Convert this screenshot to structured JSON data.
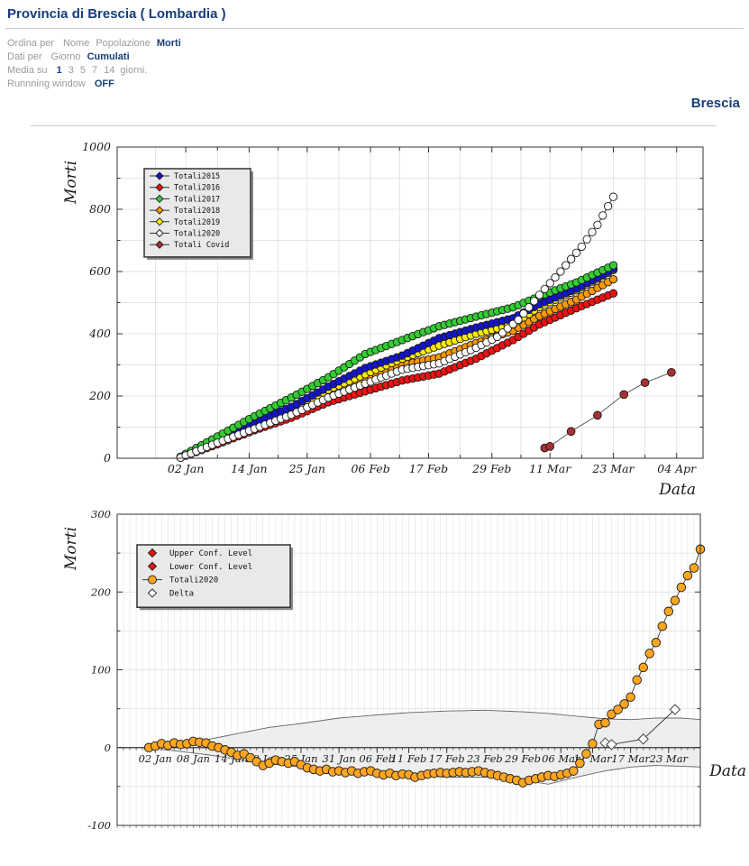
{
  "header": {
    "title": "Provincia di Brescia ( Lombardia )",
    "region_label": "Brescia",
    "controls": [
      {
        "label": "Ordina per",
        "options": [
          "Nome",
          "Popolazione",
          "Morti"
        ],
        "selected": "Morti",
        "suffix": ""
      },
      {
        "label": "Dati per",
        "options": [
          "Giorno",
          "Cumulati"
        ],
        "selected": "Cumulati",
        "suffix": ""
      },
      {
        "label": "Media su",
        "options": [
          "1",
          "3",
          "5",
          "7",
          "14"
        ],
        "selected": "1",
        "suffix": "giorni."
      },
      {
        "label": "Runnning window",
        "options": [
          "OFF"
        ],
        "selected": "OFF",
        "suffix": ""
      }
    ]
  },
  "colors": {
    "accent_navy": "#173D7D",
    "muted_text": "#9A9A9A",
    "rule": "#C8CDD3",
    "axis": "#333333",
    "grid": "#DDDDDD",
    "legend_bg": "#E9E9E9",
    "legend_shadow": "#888888",
    "band_fill": "#EEEEEE",
    "band_edge": "#666666"
  },
  "chart_data": [
    {
      "id": "top",
      "type": "line",
      "title": "",
      "xlabel": "Data",
      "ylabel": "Morti",
      "x_unit": "day of year 2020 (1 = 01 Jan)",
      "xlim": [
        -11,
        100
      ],
      "ylim": [
        0,
        1000
      ],
      "yticks": [
        0,
        200,
        400,
        600,
        800,
        1000
      ],
      "ytick_minor_step": 100,
      "grid": true,
      "legend_position": "upper left inset",
      "xticks": [
        {
          "day": 2,
          "label": "02 Jan"
        },
        {
          "day": 14,
          "label": "14 Jan"
        },
        {
          "day": 25,
          "label": "25 Jan"
        },
        {
          "day": 37,
          "label": "06 Feb"
        },
        {
          "day": 48,
          "label": "17 Feb"
        },
        {
          "day": 60,
          "label": "29 Feb"
        },
        {
          "day": 71,
          "label": "11 Mar"
        },
        {
          "day": 83,
          "label": "23 Mar"
        },
        {
          "day": 95,
          "label": "04 Apr"
        }
      ],
      "draw_order": [
        1,
        3,
        4,
        0,
        2,
        5,
        6
      ],
      "series": [
        {
          "name": "Totali2015",
          "color": "#1414CC",
          "marker": "circle",
          "marker_px": 4.2,
          "sampling": "daily, interpolated from estimated weekly anchors [day, cumulative deaths]",
          "anchors": [
            [
              1,
              4
            ],
            [
              8,
              60
            ],
            [
              15,
              115
            ],
            [
              22,
              165
            ],
            [
              29,
              230
            ],
            [
              36,
              290
            ],
            [
              43,
              330
            ],
            [
              50,
              386
            ],
            [
              57,
              420
            ],
            [
              64,
              450
            ],
            [
              69,
              495
            ],
            [
              76,
              545
            ],
            [
              83,
              608
            ]
          ]
        },
        {
          "name": "Totali2016",
          "color": "#EE1111",
          "marker": "circle",
          "marker_px": 4.2,
          "anchors": [
            [
              1,
              2
            ],
            [
              8,
              45
            ],
            [
              15,
              90
            ],
            [
              22,
              130
            ],
            [
              29,
              180
            ],
            [
              36,
              215
            ],
            [
              43,
              250
            ],
            [
              50,
              272
            ],
            [
              57,
              320
            ],
            [
              64,
              380
            ],
            [
              69,
              430
            ],
            [
              76,
              482
            ],
            [
              83,
              530
            ]
          ]
        },
        {
          "name": "Totali2017",
          "color": "#33CC33",
          "marker": "circle",
          "marker_px": 4.2,
          "anchors": [
            [
              1,
              5
            ],
            [
              8,
              70
            ],
            [
              15,
              135
            ],
            [
              22,
              195
            ],
            [
              29,
              260
            ],
            [
              36,
              335
            ],
            [
              43,
              380
            ],
            [
              50,
              424
            ],
            [
              57,
              455
            ],
            [
              64,
              485
            ],
            [
              69,
              520
            ],
            [
              76,
              565
            ],
            [
              83,
              620
            ]
          ]
        },
        {
          "name": "Totali2018",
          "color": "#FF9900",
          "marker": "circle",
          "marker_px": 4.2,
          "anchors": [
            [
              1,
              3
            ],
            [
              8,
              52
            ],
            [
              15,
              105
            ],
            [
              22,
              155
            ],
            [
              29,
              210
            ],
            [
              36,
              258
            ],
            [
              43,
              300
            ],
            [
              50,
              324
            ],
            [
              57,
              370
            ],
            [
              64,
              410
            ],
            [
              69,
              457
            ],
            [
              76,
              510
            ],
            [
              83,
              575
            ]
          ]
        },
        {
          "name": "Totali2019",
          "color": "#FFEB00",
          "marker": "circle",
          "marker_px": 4.2,
          "anchors": [
            [
              1,
              3
            ],
            [
              8,
              55
            ],
            [
              15,
              110
            ],
            [
              22,
              160
            ],
            [
              29,
              220
            ],
            [
              36,
              270
            ],
            [
              43,
              320
            ],
            [
              50,
              362
            ],
            [
              57,
              400
            ],
            [
              64,
              430
            ],
            [
              69,
              486
            ],
            [
              76,
              540
            ],
            [
              83,
              605
            ]
          ]
        },
        {
          "name": "Totali2020",
          "color": "#FFFFFF",
          "marker": "circle",
          "marker_px": 4.2,
          "anchors": [
            [
              1,
              2
            ],
            [
              8,
              50
            ],
            [
              15,
              95
            ],
            [
              22,
              140
            ],
            [
              29,
              195
            ],
            [
              36,
              240
            ],
            [
              43,
              285
            ],
            [
              50,
              305
            ],
            [
              57,
              355
            ],
            [
              61,
              390
            ],
            [
              65,
              445
            ],
            [
              69,
              525
            ],
            [
              73,
              600
            ],
            [
              77,
              680
            ],
            [
              80,
              750
            ],
            [
              83,
              840
            ]
          ]
        },
        {
          "name": "Totali Covid",
          "color": "#A93030",
          "marker": "circle",
          "marker_px": 4.4,
          "line_color": "#555555",
          "points": [
            [
              70,
              33
            ],
            [
              71,
              38
            ],
            [
              75,
              86
            ],
            [
              80,
              138
            ],
            [
              85,
              205
            ],
            [
              89,
              243
            ],
            [
              94,
              276
            ]
          ]
        }
      ],
      "legend": [
        {
          "label": "Totali2015",
          "marker": "diamond",
          "color": "#1414CC",
          "line": true
        },
        {
          "label": "Totali2016",
          "marker": "diamond",
          "color": "#EE1111",
          "line": true
        },
        {
          "label": "Totali2017",
          "marker": "diamond",
          "color": "#33CC33",
          "line": true
        },
        {
          "label": "Totali2018",
          "marker": "diamond",
          "color": "#FF9900",
          "line": true
        },
        {
          "label": "Totali2019",
          "marker": "diamond",
          "color": "#FFEB00",
          "line": true
        },
        {
          "label": "Totali2020",
          "marker": "diamond",
          "color": "#FFFFFF",
          "line": true
        },
        {
          "label": "Totali Covid",
          "marker": "diamond",
          "color": "#A93030",
          "line": true
        }
      ]
    },
    {
      "id": "bottom",
      "type": "line",
      "title": "",
      "xlabel": "Data",
      "ylabel": "Morti",
      "x_unit": "day of year 2020 (1 = 01 Jan)",
      "xlim": [
        -4,
        88
      ],
      "ylim": [
        -100,
        300
      ],
      "yticks": [
        -100,
        0,
        100,
        200,
        300
      ],
      "ytick_minor_step": 50,
      "grid": true,
      "x_axis_at_zero": true,
      "legend_position": "upper left inset",
      "xticks": [
        {
          "day": 2,
          "label": "02 Jan"
        },
        {
          "day": 8,
          "label": "08 Jan"
        },
        {
          "day": 14,
          "label": "14 Jan"
        },
        {
          "day": 19,
          "label": "19 Jan"
        },
        {
          "day": 25,
          "label": "25 Jan"
        },
        {
          "day": 31,
          "label": "31 Jan"
        },
        {
          "day": 37,
          "label": "06 Feb"
        },
        {
          "day": 42,
          "label": "11 Feb"
        },
        {
          "day": 48,
          "label": "17 Feb"
        },
        {
          "day": 54,
          "label": "23 Feb"
        },
        {
          "day": 60,
          "label": "29 Feb"
        },
        {
          "day": 66,
          "label": "06 Mar"
        },
        {
          "day": 71,
          "label": "11 Mar"
        },
        {
          "day": 77,
          "label": "17 Mar"
        },
        {
          "day": 83,
          "label": "23 Mar"
        }
      ],
      "band": {
        "upper_name": "Upper Conf. Level",
        "lower_name": "Lower Conf. Level",
        "anchors_day_lower_upper": [
          [
            1,
            -1,
            1
          ],
          [
            5,
            -4,
            4
          ],
          [
            10,
            -9,
            10
          ],
          [
            15,
            -15,
            18
          ],
          [
            20,
            -21,
            26
          ],
          [
            25,
            -25,
            31
          ],
          [
            31,
            -30,
            38
          ],
          [
            37,
            -34,
            42
          ],
          [
            42,
            -36,
            45
          ],
          [
            48,
            -38,
            47
          ],
          [
            54,
            -38,
            48
          ],
          [
            60,
            -42,
            46
          ],
          [
            64,
            -47,
            44
          ],
          [
            69,
            -37,
            40
          ],
          [
            73,
            -30,
            37
          ],
          [
            77,
            -25,
            36
          ],
          [
            81,
            -23,
            38
          ],
          [
            85,
            -24,
            38
          ],
          [
            88,
            -25,
            36
          ]
        ]
      },
      "series": [
        {
          "name": "Totali2020",
          "color": "#FFA521",
          "marker": "circle",
          "marker_px": 4.8,
          "start_day": 1,
          "daily_values": [
            0,
            2,
            5,
            3,
            6,
            4,
            5,
            8,
            7,
            6,
            2,
            0,
            -3,
            -6,
            -10,
            -8,
            -13,
            -18,
            -23,
            -20,
            -16,
            -18,
            -20,
            -18,
            -22,
            -26,
            -28,
            -30,
            -28,
            -31,
            -30,
            -32,
            -30,
            -33,
            -31,
            -30,
            -33,
            -35,
            -33,
            -36,
            -34,
            -35,
            -38,
            -36,
            -34,
            -33,
            -32,
            -33,
            -32,
            -31,
            -32,
            -31,
            -30,
            -32,
            -34,
            -36,
            -38,
            -40,
            -42,
            -45,
            -42,
            -40,
            -38,
            -36,
            -37,
            -35,
            -33,
            -30,
            -20,
            -8,
            5,
            30,
            32,
            43,
            49,
            56,
            65,
            87,
            103,
            121,
            135,
            156,
            175,
            189,
            206,
            221,
            231,
            255
          ]
        },
        {
          "name": "Delta",
          "color": "#FFFFFF",
          "marker": "diamond",
          "marker_px": 5.5,
          "points": [
            [
              73,
              6
            ],
            [
              74,
              4
            ],
            [
              79,
              11
            ],
            [
              84,
              49
            ]
          ]
        }
      ],
      "legend": [
        {
          "label": "Upper Conf. Level",
          "marker": "diamond",
          "color": "#EE1111",
          "line": false
        },
        {
          "label": "Lower Conf. Level",
          "marker": "diamond",
          "color": "#EE1111",
          "line": false
        },
        {
          "label": "Totali2020",
          "marker": "circle",
          "color": "#FFA521",
          "line": true
        },
        {
          "label": "Delta",
          "marker": "diamond",
          "color": "#FFFFFF",
          "line": false
        }
      ]
    }
  ]
}
